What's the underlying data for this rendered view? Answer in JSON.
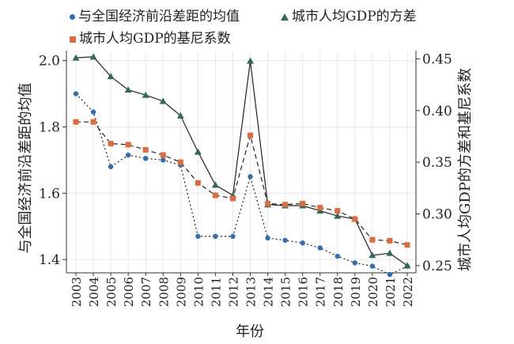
{
  "chart_data": {
    "type": "line",
    "x_title": "年份",
    "y_left_title": "与全国经济前沿差距的均值",
    "y_right_title": "城市人均GDP的方差和基尼系数",
    "years": [
      "2003",
      "2004",
      "2005",
      "2006",
      "2007",
      "2008",
      "2009",
      "2010",
      "2011",
      "2012",
      "2013",
      "2014",
      "2015",
      "2016",
      "2017",
      "2018",
      "2019",
      "2020",
      "2021",
      "2022"
    ],
    "y_left_ticks": [
      "1.4",
      "1.6",
      "1.8",
      "2.0"
    ],
    "y_left_range": [
      1.36,
      2.03
    ],
    "y_right_ticks": [
      "0.25",
      "0.30",
      "0.35",
      "0.40",
      "0.45"
    ],
    "y_right_range": [
      0.243,
      0.458
    ],
    "series": [
      {
        "name": "与全国经济前沿差距的均值",
        "axis": "left",
        "marker": "circle",
        "line": "dotted",
        "color": "#2f6fb5",
        "values": [
          1.9,
          1.845,
          1.68,
          1.715,
          1.705,
          1.7,
          1.685,
          1.47,
          1.47,
          1.47,
          1.65,
          1.465,
          1.458,
          1.45,
          1.435,
          1.41,
          1.39,
          1.38,
          1.355,
          1.38
        ]
      },
      {
        "name": "城市人均GDP的方差",
        "axis": "right",
        "marker": "triangle",
        "line": "solid",
        "color": "#2e6b5a",
        "values": [
          0.451,
          0.452,
          0.433,
          0.42,
          0.415,
          0.409,
          0.395,
          0.36,
          0.328,
          0.318,
          0.448,
          0.309,
          0.308,
          0.308,
          0.303,
          0.298,
          0.295,
          0.26,
          0.262,
          0.25
        ]
      },
      {
        "name": "城市人均GDP的基尼系数",
        "axis": "right",
        "marker": "square",
        "line": "dashed",
        "color": "#e06a3a",
        "values": [
          0.389,
          0.389,
          0.368,
          0.367,
          0.362,
          0.357,
          0.35,
          0.33,
          0.318,
          0.315,
          0.376,
          0.31,
          0.309,
          0.31,
          0.306,
          0.303,
          0.295,
          0.275,
          0.274,
          0.27
        ]
      }
    ]
  }
}
